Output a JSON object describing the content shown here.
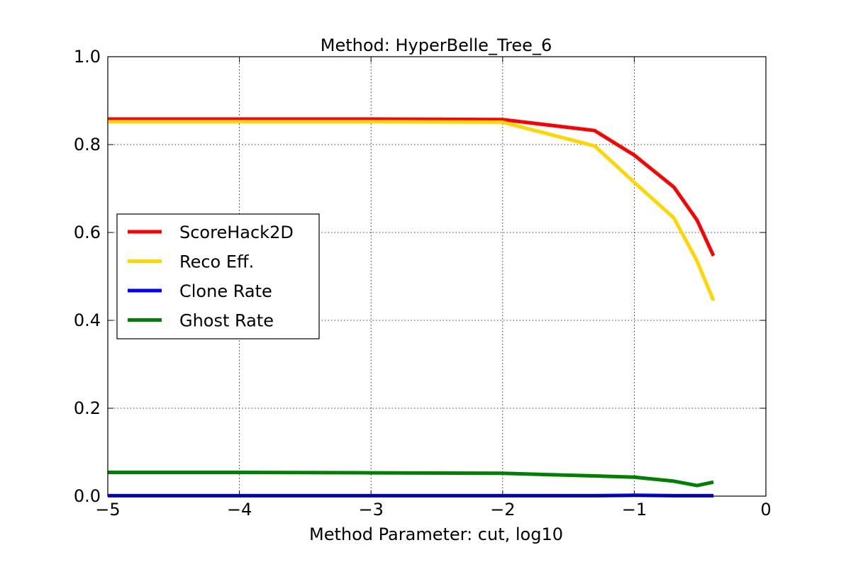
{
  "chart_data": {
    "type": "line",
    "title": "Method: HyperBelle_Tree_6",
    "xlabel": "Method Parameter: cut, log10",
    "ylabel": "",
    "xlim": [
      -5,
      0
    ],
    "ylim": [
      0,
      1.0
    ],
    "xticks": [
      -5,
      -4,
      -3,
      -2,
      -1,
      0
    ],
    "xtick_labels": [
      "−5",
      "−4",
      "−3",
      "−2",
      "−1",
      "0"
    ],
    "yticks": [
      0.0,
      0.2,
      0.4,
      0.6,
      0.8,
      1.0
    ],
    "ytick_labels": [
      "0.0",
      "0.2",
      "0.4",
      "0.6",
      "0.8",
      "1.0"
    ],
    "grid": true,
    "legend_position": "center-left",
    "x": [
      -5,
      -4,
      -3,
      -2,
      -1.301,
      -1,
      -0.699,
      -0.523,
      -0.398
    ],
    "series": [
      {
        "name": "ScoreHack2D",
        "color": "#ff0000",
        "values": [
          0.858,
          0.858,
          0.858,
          0.857,
          0.832,
          0.776,
          0.703,
          0.628,
          0.547
        ]
      },
      {
        "name": "Reco Eff.",
        "color": "#ffd700",
        "values": [
          0.852,
          0.852,
          0.852,
          0.851,
          0.797,
          0.714,
          0.633,
          0.535,
          0.445
        ]
      },
      {
        "name": "Clone Rate",
        "color": "#0000ff",
        "values": [
          0.001,
          0.001,
          0.001,
          0.001,
          0.001,
          0.002,
          0.001,
          0.001,
          0.001
        ]
      },
      {
        "name": "Ghost Rate",
        "color": "#008000",
        "values": [
          0.054,
          0.054,
          0.053,
          0.052,
          0.046,
          0.043,
          0.034,
          0.024,
          0.032
        ]
      }
    ]
  }
}
